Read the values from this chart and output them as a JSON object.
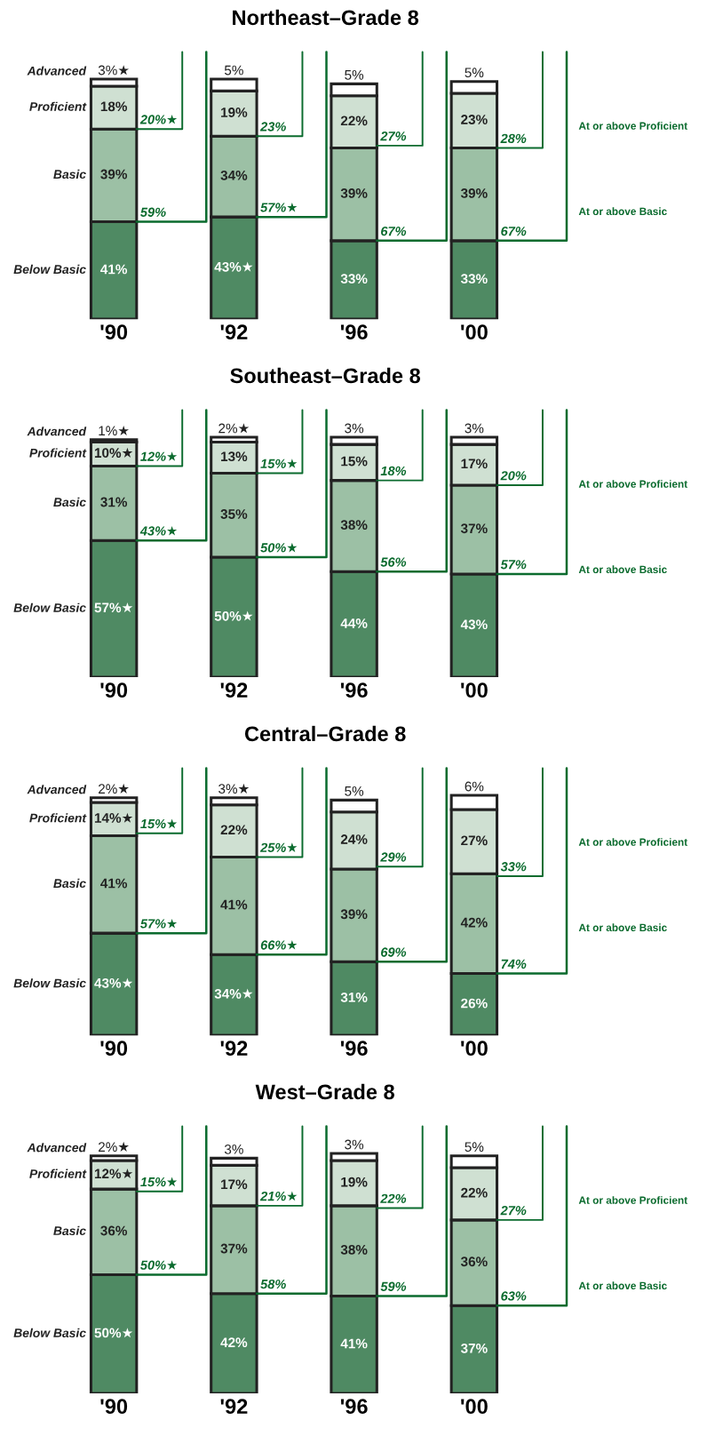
{
  "chart_data": [
    {
      "type": "bar",
      "title": "Northeast–Grade 8",
      "categories": [
        "'90",
        "'92",
        "'96",
        "'00"
      ],
      "stacked": true,
      "tick_labels": "x",
      "legend": false,
      "grid": false,
      "series": [
        {
          "name": "Below Basic",
          "color": "#4f8a63",
          "values": [
            41,
            43,
            33,
            33
          ],
          "value_labels": [
            "41%",
            "43%★",
            "33%",
            "33%"
          ]
        },
        {
          "name": "Basic",
          "color": "#9cc0a5",
          "values": [
            39,
            34,
            39,
            39
          ],
          "value_labels": [
            "39%",
            "34%",
            "39%",
            "39%"
          ]
        },
        {
          "name": "Proficient",
          "color": "#cfe0d2",
          "values": [
            18,
            19,
            22,
            23
          ],
          "value_labels": [
            "18%",
            "19%",
            "22%",
            "23%"
          ]
        },
        {
          "name": "Advanced",
          "color": "#ffffff",
          "values": [
            3,
            5,
            5,
            5
          ],
          "value_labels": [
            "3%★",
            "5%",
            "5%",
            "5%"
          ]
        }
      ],
      "annotations": [
        {
          "text": "20%★",
          "x": "'90",
          "y": 80
        },
        {
          "text": "59%",
          "x": "'90",
          "y": 41
        },
        {
          "text": "23%",
          "x": "'92",
          "y": 77
        },
        {
          "text": "57%★",
          "x": "'92",
          "y": 43
        },
        {
          "text": "27%",
          "x": "'96",
          "y": 73
        },
        {
          "text": "67%",
          "x": "'96",
          "y": 33
        },
        {
          "text": "28%",
          "x": "'00",
          "y": 72
        },
        {
          "text": "67%",
          "x": "'00",
          "y": 33
        },
        "At or above Proficient",
        "At or above Basic"
      ]
    },
    {
      "type": "bar",
      "title": "Southeast–Grade 8",
      "categories": [
        "'90",
        "'92",
        "'96",
        "'00"
      ],
      "stacked": true,
      "tick_labels": "x",
      "legend": false,
      "grid": false,
      "series": [
        {
          "name": "Below Basic",
          "color": "#4f8a63",
          "values": [
            57,
            50,
            44,
            43
          ],
          "value_labels": [
            "57%★",
            "50%★",
            "44%",
            "43%"
          ]
        },
        {
          "name": "Basic",
          "color": "#9cc0a5",
          "values": [
            31,
            35,
            38,
            37
          ],
          "value_labels": [
            "31%",
            "35%",
            "38%",
            "37%"
          ]
        },
        {
          "name": "Proficient",
          "color": "#cfe0d2",
          "values": [
            10,
            13,
            15,
            17
          ],
          "value_labels": [
            "10%★",
            "13%",
            "15%",
            "17%"
          ]
        },
        {
          "name": "Advanced",
          "color": "#ffffff",
          "values": [
            1,
            2,
            3,
            3
          ],
          "value_labels": [
            "1%★",
            "2%★",
            "3%",
            "3%"
          ]
        }
      ],
      "annotations": [
        {
          "text": "12%★",
          "x": "'90",
          "y": 88
        },
        {
          "text": "43%★",
          "x": "'90",
          "y": 57
        },
        {
          "text": "15%★",
          "x": "'92",
          "y": 85
        },
        {
          "text": "50%★",
          "x": "'92",
          "y": 50
        },
        {
          "text": "18%",
          "x": "'96",
          "y": 82
        },
        {
          "text": "56%",
          "x": "'96",
          "y": 44
        },
        {
          "text": "20%",
          "x": "'00",
          "y": 80
        },
        {
          "text": "57%",
          "x": "'00",
          "y": 43
        },
        "At or above Proficient",
        "At or above Basic"
      ]
    },
    {
      "type": "bar",
      "title": "Central–Grade 8",
      "categories": [
        "'90",
        "'92",
        "'96",
        "'00"
      ],
      "stacked": true,
      "tick_labels": "x",
      "legend": false,
      "grid": false,
      "series": [
        {
          "name": "Below Basic",
          "color": "#4f8a63",
          "values": [
            43,
            34,
            31,
            26
          ],
          "value_labels": [
            "43%★",
            "34%★",
            "31%",
            "26%"
          ]
        },
        {
          "name": "Basic",
          "color": "#9cc0a5",
          "values": [
            41,
            41,
            39,
            42
          ],
          "value_labels": [
            "41%",
            "41%",
            "39%",
            "42%"
          ]
        },
        {
          "name": "Proficient",
          "color": "#cfe0d2",
          "values": [
            14,
            22,
            24,
            27
          ],
          "value_labels": [
            "14%★",
            "22%",
            "24%",
            "27%"
          ]
        },
        {
          "name": "Advanced",
          "color": "#ffffff",
          "values": [
            2,
            3,
            5,
            6
          ],
          "value_labels": [
            "2%★",
            "3%★",
            "5%",
            "6%"
          ]
        }
      ],
      "annotations": [
        {
          "text": "15%★",
          "x": "'90",
          "y": 85
        },
        {
          "text": "57%★",
          "x": "'90",
          "y": 43
        },
        {
          "text": "25%★",
          "x": "'92",
          "y": 75
        },
        {
          "text": "66%★",
          "x": "'92",
          "y": 34
        },
        {
          "text": "29%",
          "x": "'96",
          "y": 71
        },
        {
          "text": "69%",
          "x": "'96",
          "y": 31
        },
        {
          "text": "33%",
          "x": "'00",
          "y": 67
        },
        {
          "text": "74%",
          "x": "'00",
          "y": 26
        },
        "At or above Proficient",
        "At or above Basic"
      ]
    },
    {
      "type": "bar",
      "title": "West–Grade 8",
      "categories": [
        "'90",
        "'92",
        "'96",
        "'00"
      ],
      "stacked": true,
      "tick_labels": "x",
      "legend": false,
      "grid": false,
      "series": [
        {
          "name": "Below Basic",
          "color": "#4f8a63",
          "values": [
            50,
            42,
            41,
            37
          ],
          "value_labels": [
            "50%★",
            "42%",
            "41%",
            "37%"
          ]
        },
        {
          "name": "Basic",
          "color": "#9cc0a5",
          "values": [
            36,
            37,
            38,
            36
          ],
          "value_labels": [
            "36%",
            "37%",
            "38%",
            "36%"
          ]
        },
        {
          "name": "Proficient",
          "color": "#cfe0d2",
          "values": [
            12,
            17,
            19,
            22
          ],
          "value_labels": [
            "12%★",
            "17%",
            "19%",
            "22%"
          ]
        },
        {
          "name": "Advanced",
          "color": "#ffffff",
          "values": [
            2,
            3,
            3,
            5
          ],
          "value_labels": [
            "2%★",
            "3%",
            "3%",
            "5%"
          ]
        }
      ],
      "annotations": [
        {
          "text": "15%★",
          "x": "'90",
          "y": 85
        },
        {
          "text": "50%★",
          "x": "'90",
          "y": 50
        },
        {
          "text": "21%★",
          "x": "'92",
          "y": 79
        },
        {
          "text": "58%",
          "x": "'92",
          "y": 42
        },
        {
          "text": "22%",
          "x": "'96",
          "y": 78
        },
        {
          "text": "59%",
          "x": "'96",
          "y": 41
        },
        {
          "text": "27%",
          "x": "'00",
          "y": 73
        },
        {
          "text": "63%",
          "x": "'00",
          "y": 37
        },
        "At or above Proficient",
        "At or above Basic"
      ]
    }
  ]
}
